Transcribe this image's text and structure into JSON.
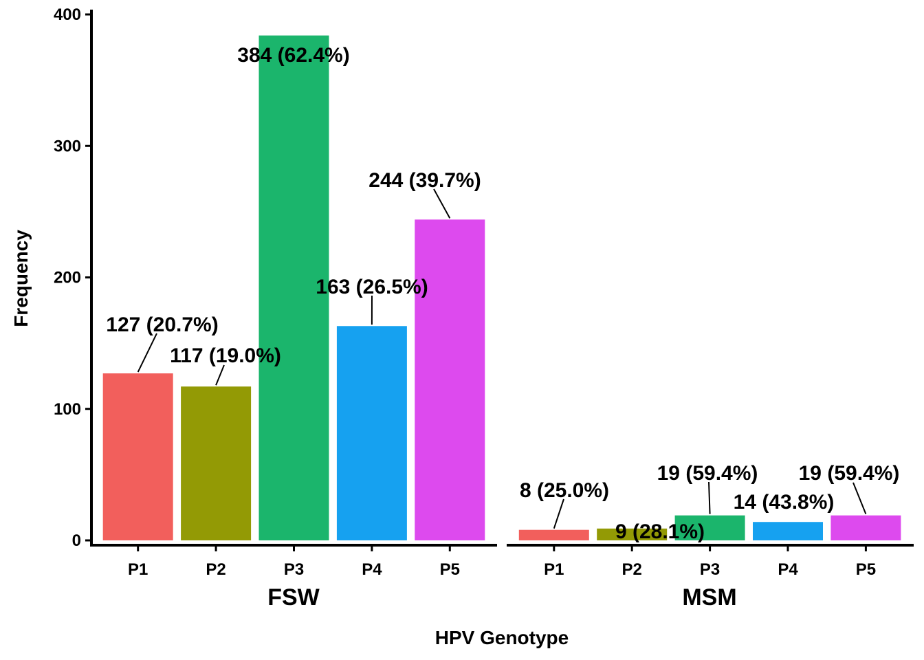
{
  "chart_data": {
    "type": "bar",
    "xlabel": "HPV Genotype",
    "ylabel": "Frequency",
    "ylim": [
      0,
      400
    ],
    "yticks": [
      0,
      100,
      200,
      300,
      400
    ],
    "categories": [
      "P1",
      "P2",
      "P3",
      "P4",
      "P5"
    ],
    "colors": [
      "#F25F5C",
      "#939A05",
      "#1BB56C",
      "#16A1F0",
      "#DD4AEE"
    ],
    "facets": [
      {
        "name": "FSW",
        "values": [
          127,
          117,
          384,
          163,
          244
        ],
        "labels": [
          "127 (20.7%)",
          "117 (19.0%)",
          "384 (62.4%)",
          "163 (26.5%)",
          "244 (39.7%)"
        ]
      },
      {
        "name": "MSM",
        "values": [
          8,
          9,
          19,
          14,
          19
        ],
        "labels": [
          "8 (25.0%)",
          "9 (28.1%)",
          "19 (59.4%)",
          "14 (43.8%)",
          "19 (59.4%)"
        ]
      }
    ]
  }
}
